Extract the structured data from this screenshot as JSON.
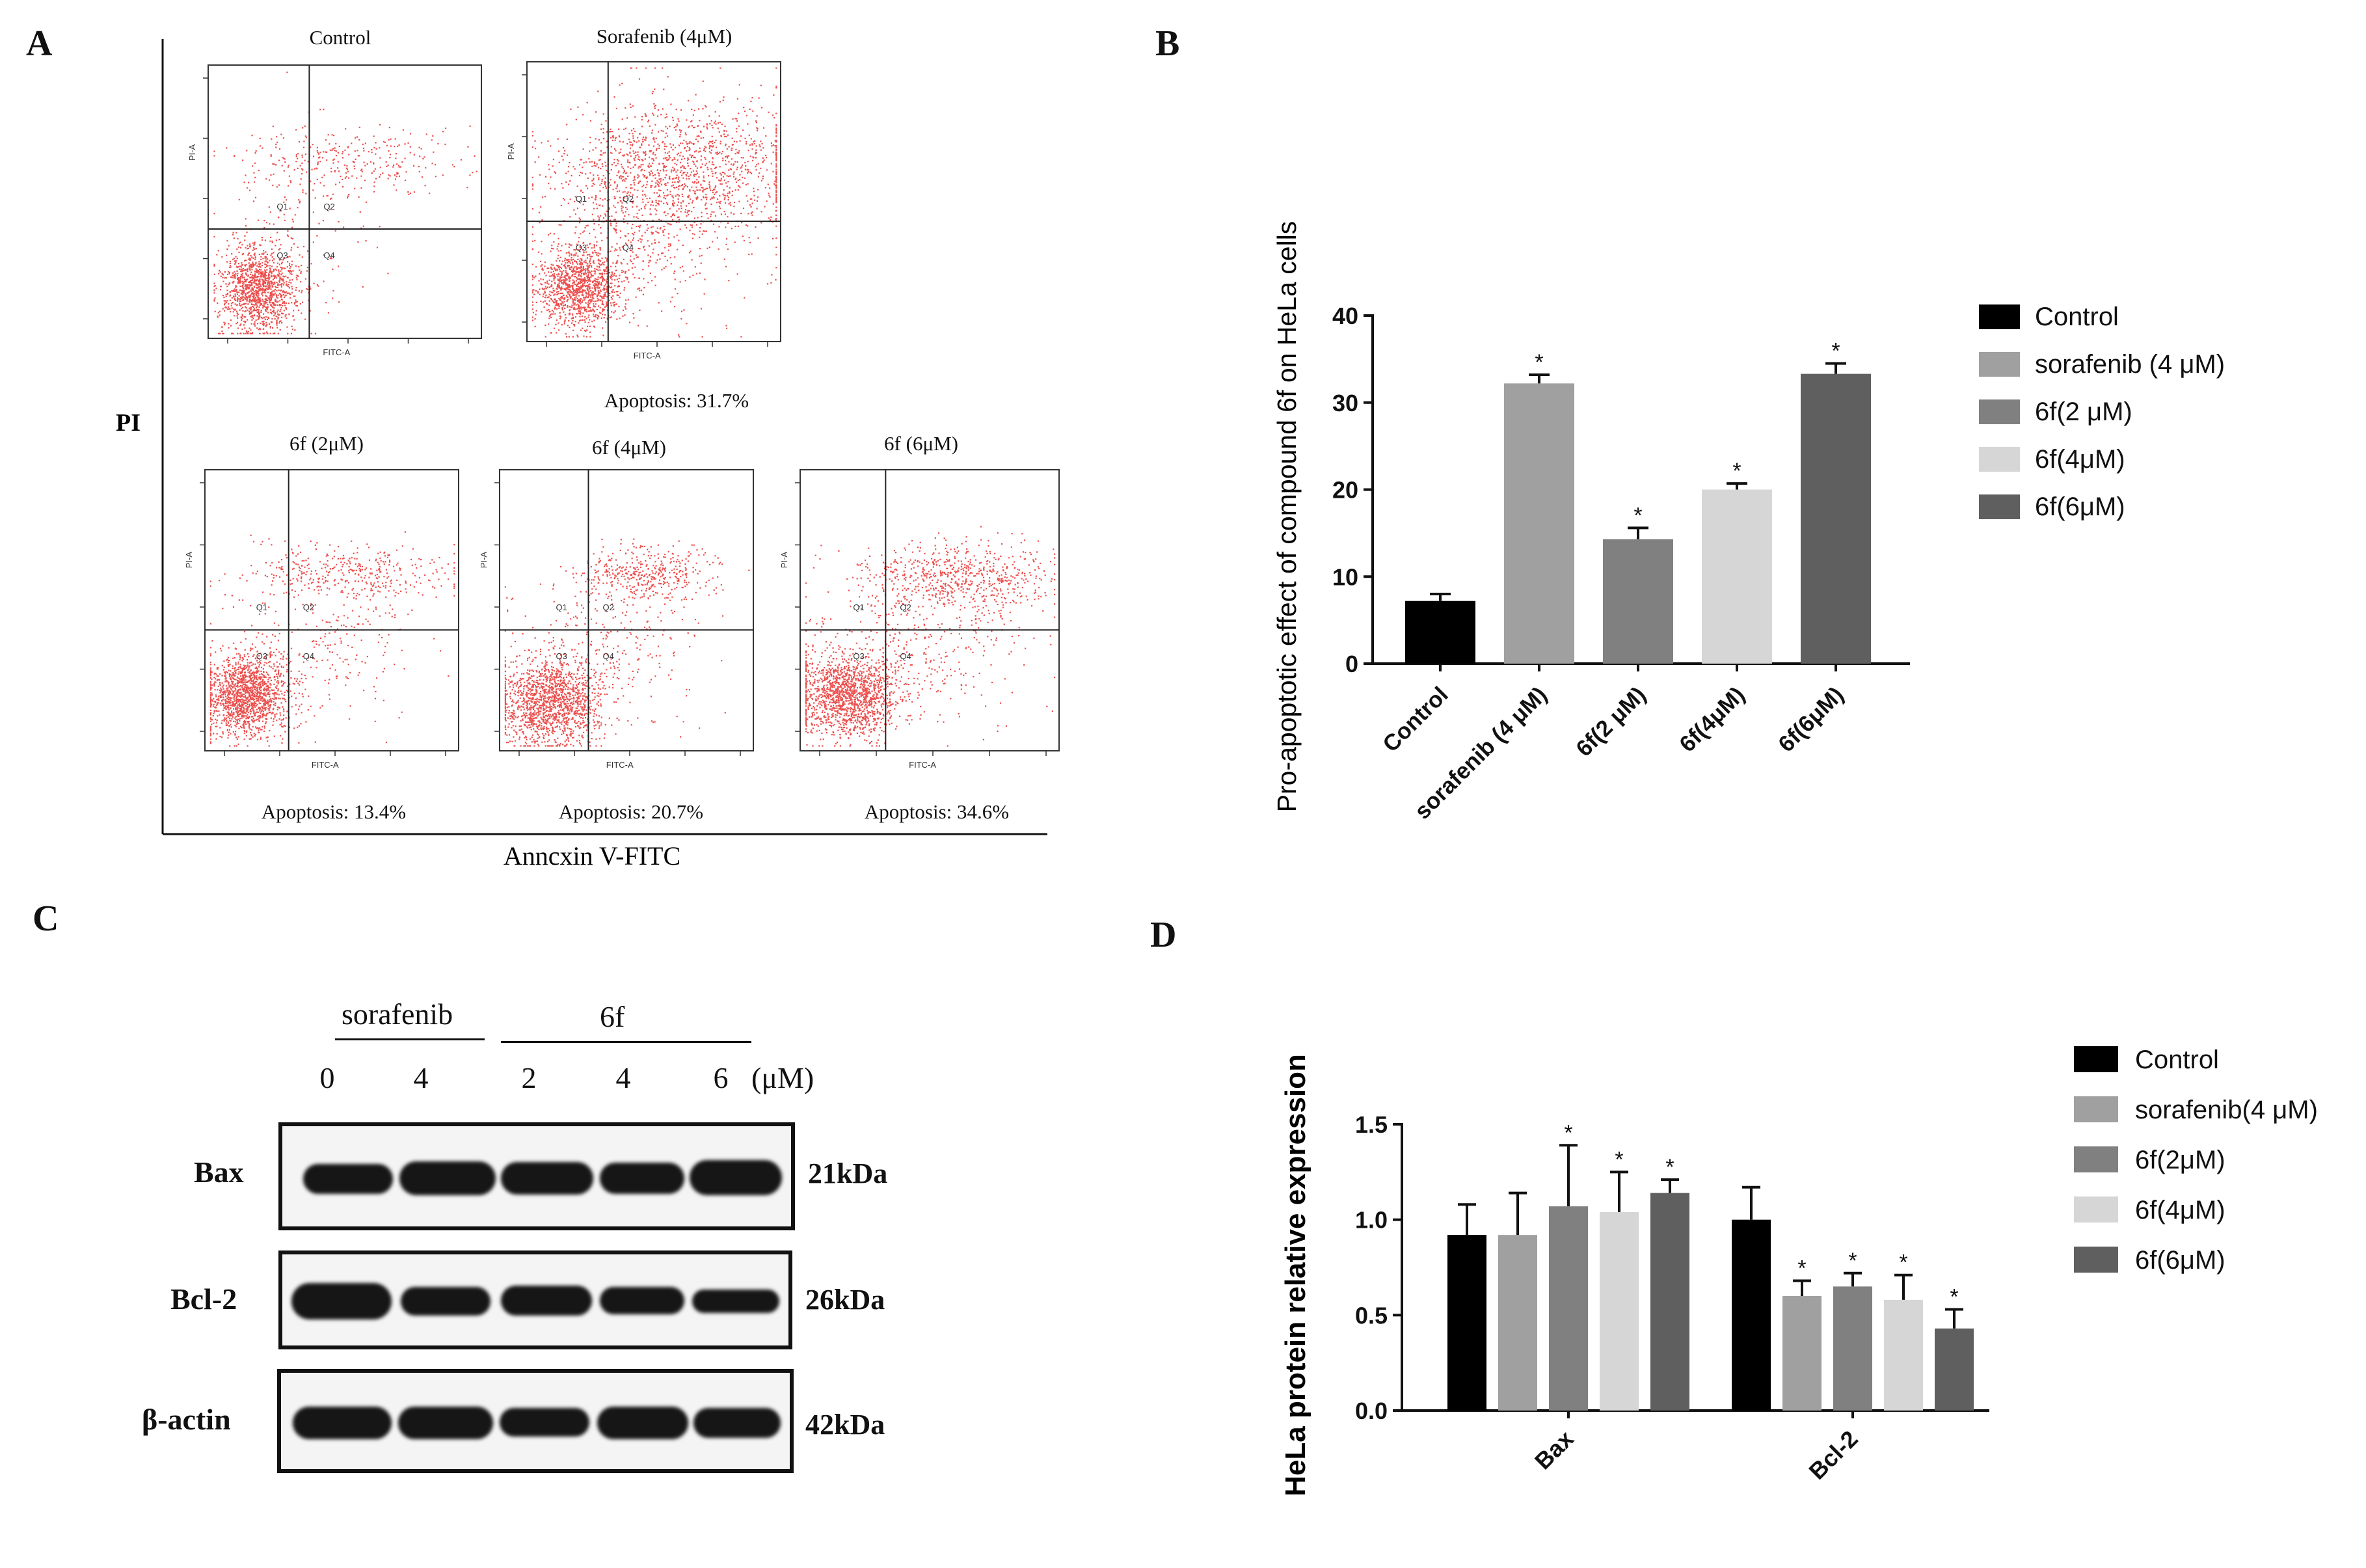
{
  "panels": {
    "a": "A",
    "b": "B",
    "c": "C",
    "d": "D"
  },
  "flow": {
    "y_axis_label": "PI",
    "x_axis_label": "Anncxin V-FITC",
    "plot_axis_x": "FITC-A",
    "plot_axis_y": "PI-A",
    "quadrants": [
      "Q1",
      "Q2",
      "Q3",
      "Q4"
    ],
    "plots": [
      {
        "title": "Control",
        "apoptosis": ""
      },
      {
        "title": "Sorafenib (4μM)",
        "apoptosis": "Apoptosis: 31.7%"
      },
      {
        "title": "6f (2μM)",
        "apoptosis": "Apoptosis: 13.4%"
      },
      {
        "title": "6f (4μM)",
        "apoptosis": "Apoptosis: 20.7%"
      },
      {
        "title": "6f (6μM)",
        "apoptosis": "Apoptosis: 34.6%"
      }
    ],
    "dot_color": "#e8312f"
  },
  "western": {
    "group_sorafenib": "sorafenib",
    "group_6f": "6f",
    "concentrations": [
      "0",
      "4",
      "2",
      "4",
      "6"
    ],
    "unit": "(μM)",
    "rows": [
      {
        "label": "Bax",
        "kda": "21kDa"
      },
      {
        "label": "Bcl-2",
        "kda": "26kDa"
      },
      {
        "label": "β-actin",
        "kda": "42kDa"
      }
    ]
  },
  "chart_data": [
    {
      "type": "bar",
      "ylabel": "Pro-apoptotic effect of compound 6f on HeLa cells",
      "xlabel": "",
      "categories": [
        "Control",
        "sorafenib (4 μM)",
        "6f(2 μM)",
        "6f(4μM)",
        "6f(6μM)"
      ],
      "values": [
        7.2,
        32.2,
        14.3,
        20.0,
        33.3
      ],
      "errors": [
        0.8,
        1.0,
        1.3,
        0.7,
        1.2
      ],
      "significance": [
        "",
        "*",
        "*",
        "*",
        "*"
      ],
      "colors": [
        "#000000",
        "#a0a0a0",
        "#808080",
        "#d6d6d6",
        "#5f5f5f"
      ],
      "legend": [
        "Control",
        "sorafenib (4 μM)",
        "6f(2 μM)",
        "6f(4μM)",
        "6f(6μM)"
      ],
      "ylim": [
        0,
        40
      ],
      "yticks": [
        "0",
        "10",
        "20",
        "30",
        "40"
      ],
      "legend_position": "right"
    },
    {
      "type": "bar",
      "ylabel": "HeLa protein relative expression",
      "xlabel": "",
      "categories": [
        "Bax",
        "Bcl-2"
      ],
      "series": [
        {
          "name": "Control",
          "values": [
            0.92,
            1.0
          ],
          "errors": [
            0.16,
            0.17
          ],
          "significance": [
            "",
            ""
          ]
        },
        {
          "name": "sorafenib(4 μM)",
          "values": [
            0.92,
            0.6
          ],
          "errors": [
            0.22,
            0.08
          ],
          "significance": [
            "",
            "*"
          ]
        },
        {
          "name": "6f(2μM)",
          "values": [
            1.07,
            0.65
          ],
          "errors": [
            0.32,
            0.07
          ],
          "significance": [
            "*",
            "*"
          ]
        },
        {
          "name": "6f(4μM)",
          "values": [
            1.04,
            0.58
          ],
          "errors": [
            0.21,
            0.13
          ],
          "significance": [
            "*",
            "*"
          ]
        },
        {
          "name": "6f(6μM)",
          "values": [
            1.14,
            0.43
          ],
          "errors": [
            0.07,
            0.1
          ],
          "significance": [
            "*",
            "*"
          ]
        }
      ],
      "colors": [
        "#000000",
        "#a0a0a0",
        "#808080",
        "#d6d6d6",
        "#5f5f5f"
      ],
      "ylim": [
        0,
        1.5
      ],
      "yticks": [
        "0.0",
        "0.5",
        "1.0",
        "1.5"
      ],
      "legend_position": "right"
    }
  ]
}
